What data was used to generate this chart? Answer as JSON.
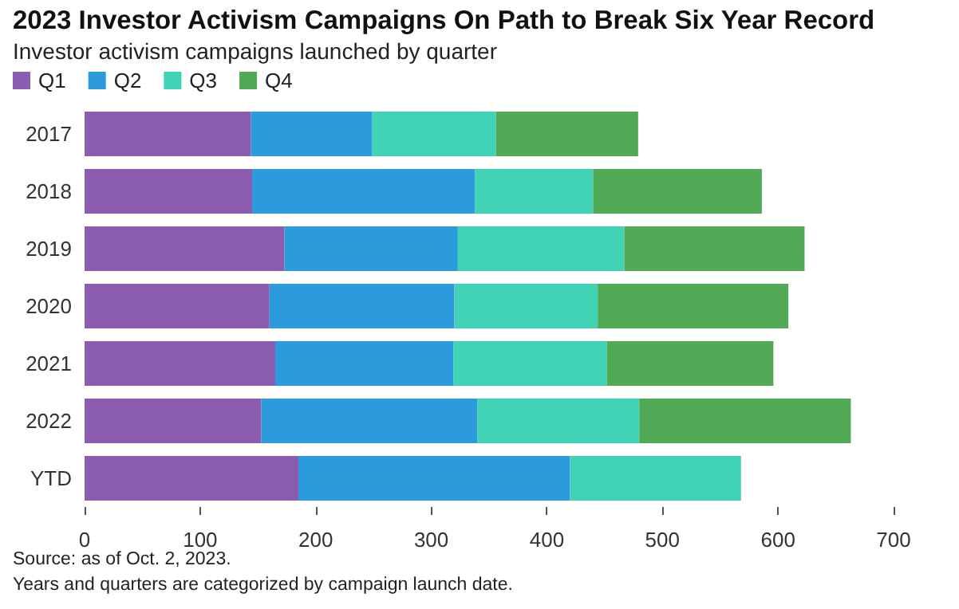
{
  "chart_data": {
    "type": "bar",
    "orientation": "horizontal",
    "stacked": true,
    "title": "2023 Investor Activism Campaigns On Path to Break Six Year Record",
    "subtitle": "Investor activism campaigns launched by quarter",
    "categories": [
      "2017",
      "2018",
      "2019",
      "2020",
      "2021",
      "2022",
      "YTD"
    ],
    "series": [
      {
        "name": "Q1",
        "color": "#8b5db0",
        "values": [
          144,
          145,
          173,
          160,
          165,
          153,
          185
        ]
      },
      {
        "name": "Q2",
        "color": "#2b9bdb",
        "values": [
          105,
          193,
          150,
          160,
          154,
          187,
          235
        ]
      },
      {
        "name": "Q3",
        "color": "#40d3b5",
        "values": [
          107,
          102,
          144,
          124,
          133,
          140,
          148
        ]
      },
      {
        "name": "Q4",
        "color": "#50aa55",
        "values": [
          123,
          146,
          156,
          165,
          144,
          183,
          null
        ]
      }
    ],
    "xlim": [
      0,
      700
    ],
    "xticks": [
      0,
      100,
      200,
      300,
      400,
      500,
      600,
      700
    ],
    "grid": false,
    "legend": "top left",
    "annotations": [
      "Source: as of Oct. 2, 2023.",
      "Years and quarters are categorized by campaign launch date."
    ]
  }
}
